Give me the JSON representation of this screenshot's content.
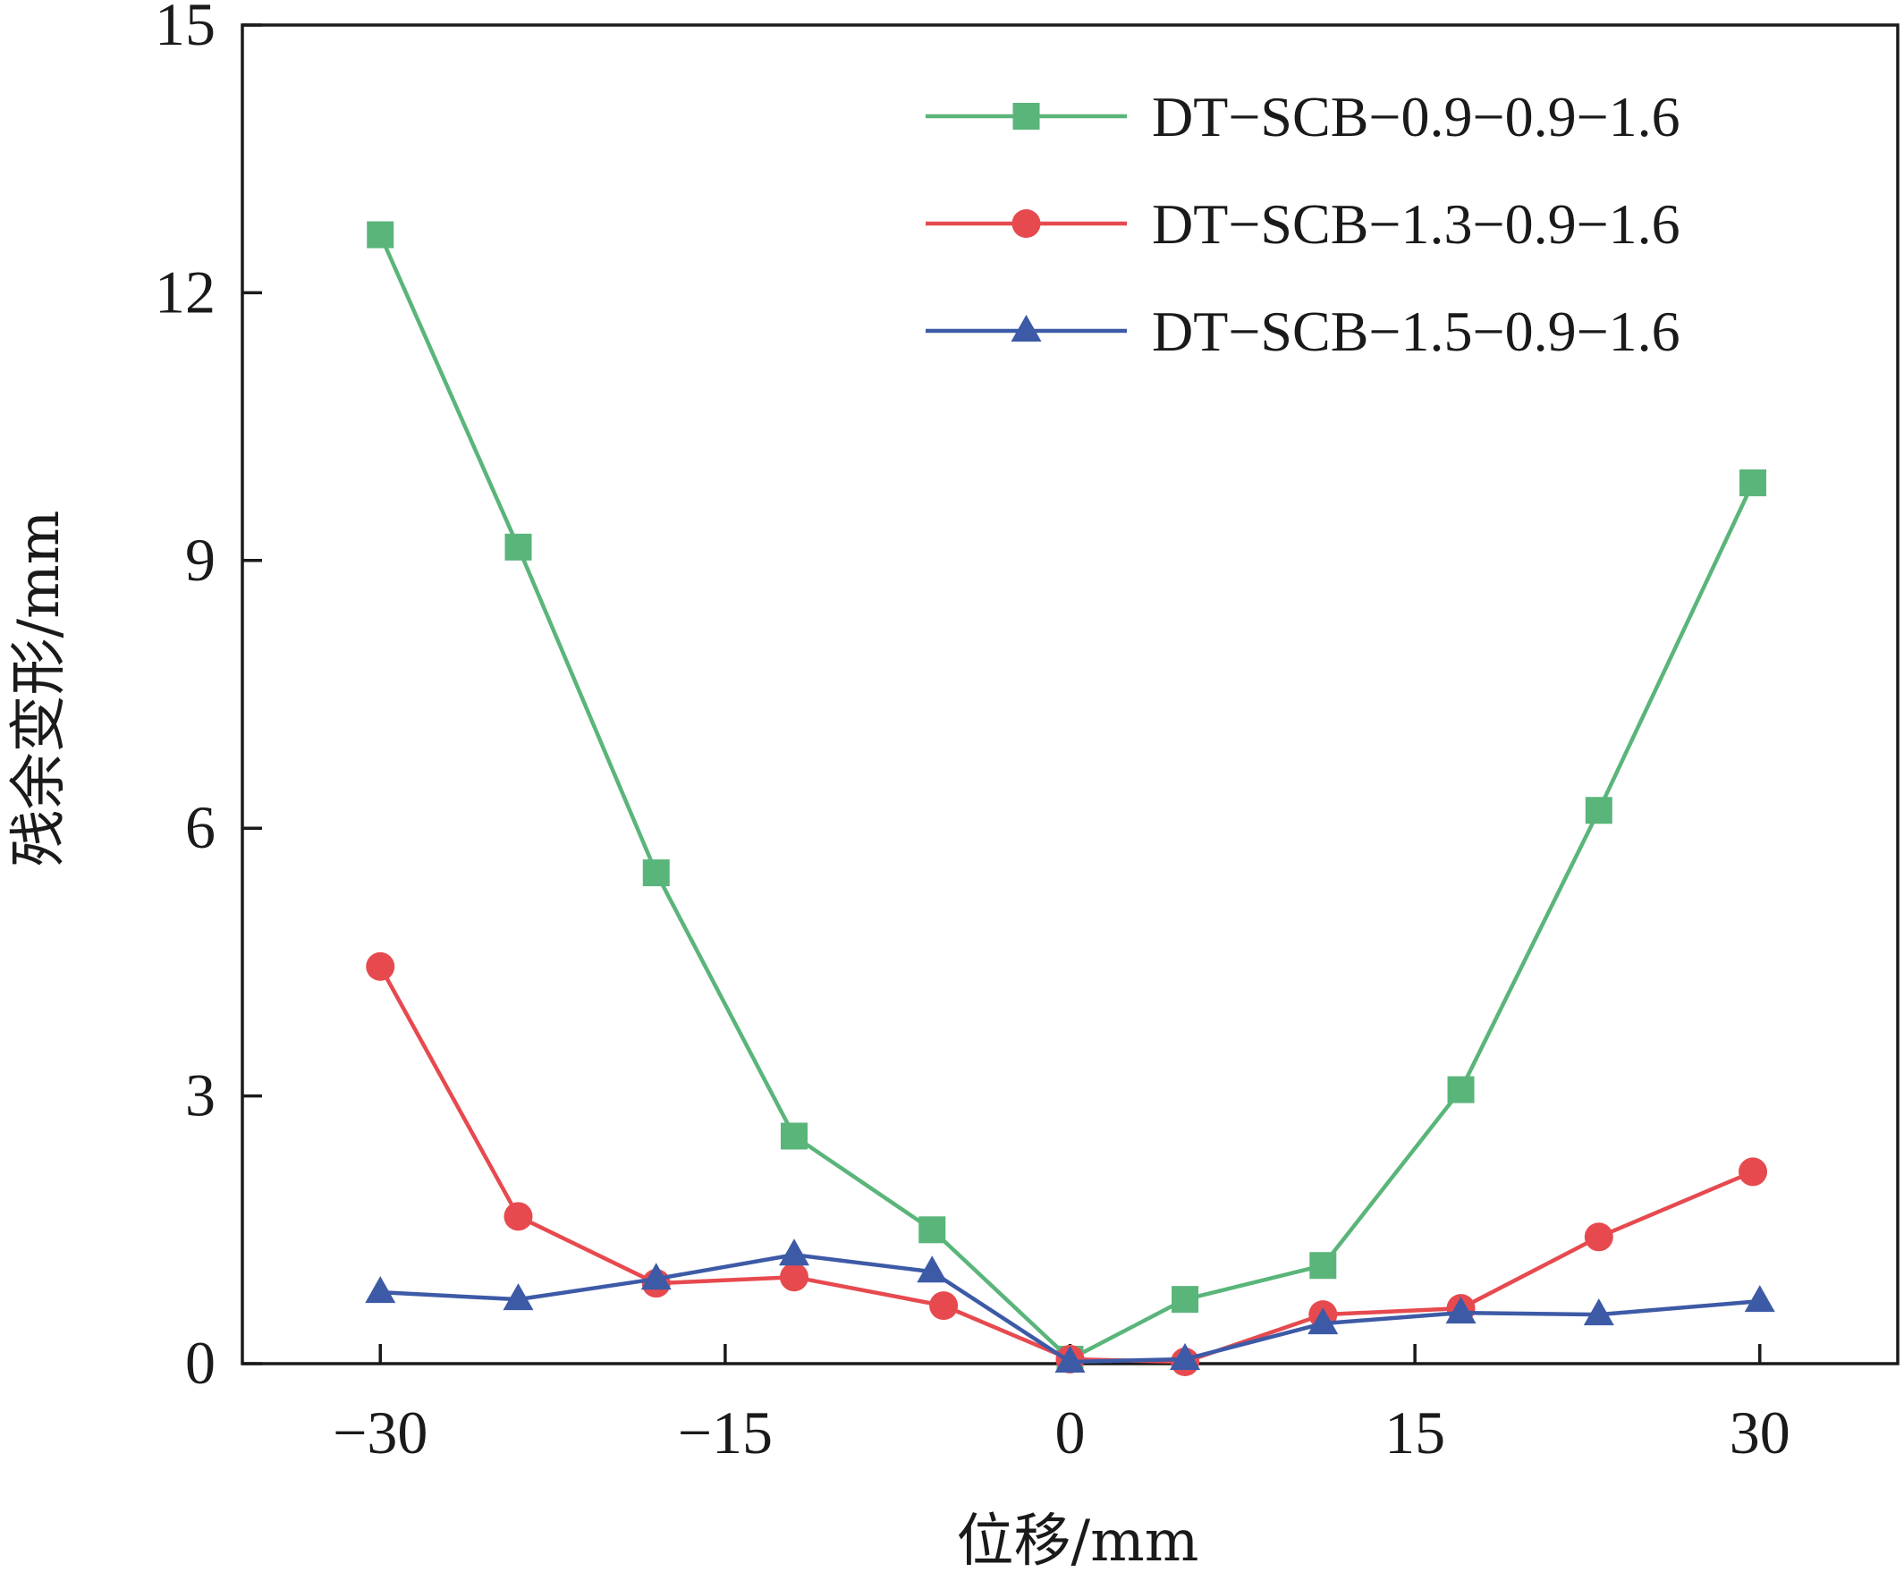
{
  "chart_data": {
    "type": "line",
    "xlabel": "位移/mm",
    "ylabel": "残余变形/mm",
    "xlim": [
      -36,
      36
    ],
    "ylim": [
      0,
      15
    ],
    "xticks": [
      -30,
      -15,
      0,
      15,
      30
    ],
    "yticks": [
      0,
      3,
      6,
      9,
      12,
      15
    ],
    "x_tick_labels": [
      "−30",
      "−15",
      "0",
      "15",
      "30"
    ],
    "y_tick_labels": [
      "0",
      "3",
      "6",
      "9",
      "12",
      "15"
    ],
    "grid": false,
    "legend_position": "top-right",
    "series": [
      {
        "name": "DT−SCB−0.9−0.9−1.6",
        "color": "#5ab57a",
        "marker": "square",
        "points": [
          [
            -30,
            12.65
          ],
          [
            -24,
            9.15
          ],
          [
            -18,
            5.5
          ],
          [
            -12,
            2.55
          ],
          [
            -6,
            1.5
          ],
          [
            0,
            0.05
          ],
          [
            5,
            0.72
          ],
          [
            11,
            1.1
          ],
          [
            17,
            3.07
          ],
          [
            23,
            6.2
          ],
          [
            29.7,
            9.87
          ]
        ]
      },
      {
        "name": "DT−SCB−1.3−0.9−1.6",
        "color": "#e64a4f",
        "marker": "circle",
        "points": [
          [
            -30,
            4.45
          ],
          [
            -24,
            1.65
          ],
          [
            -18,
            0.9
          ],
          [
            -12,
            0.97
          ],
          [
            -5.5,
            0.65
          ],
          [
            0,
            0.05
          ],
          [
            5,
            0.02
          ],
          [
            11,
            0.55
          ],
          [
            17,
            0.62
          ],
          [
            23,
            1.42
          ],
          [
            29.7,
            2.15
          ]
        ]
      },
      {
        "name": "DT−SCB−1.5−0.9−1.6",
        "color": "#3d5aa6",
        "marker": "triangle",
        "points": [
          [
            -30,
            0.8
          ],
          [
            -24,
            0.72
          ],
          [
            -18,
            0.95
          ],
          [
            -12,
            1.22
          ],
          [
            -6,
            1.03
          ],
          [
            0,
            0.02
          ],
          [
            5,
            0.05
          ],
          [
            11,
            0.45
          ],
          [
            17,
            0.57
          ],
          [
            23,
            0.55
          ],
          [
            30,
            0.7
          ]
        ]
      }
    ]
  }
}
